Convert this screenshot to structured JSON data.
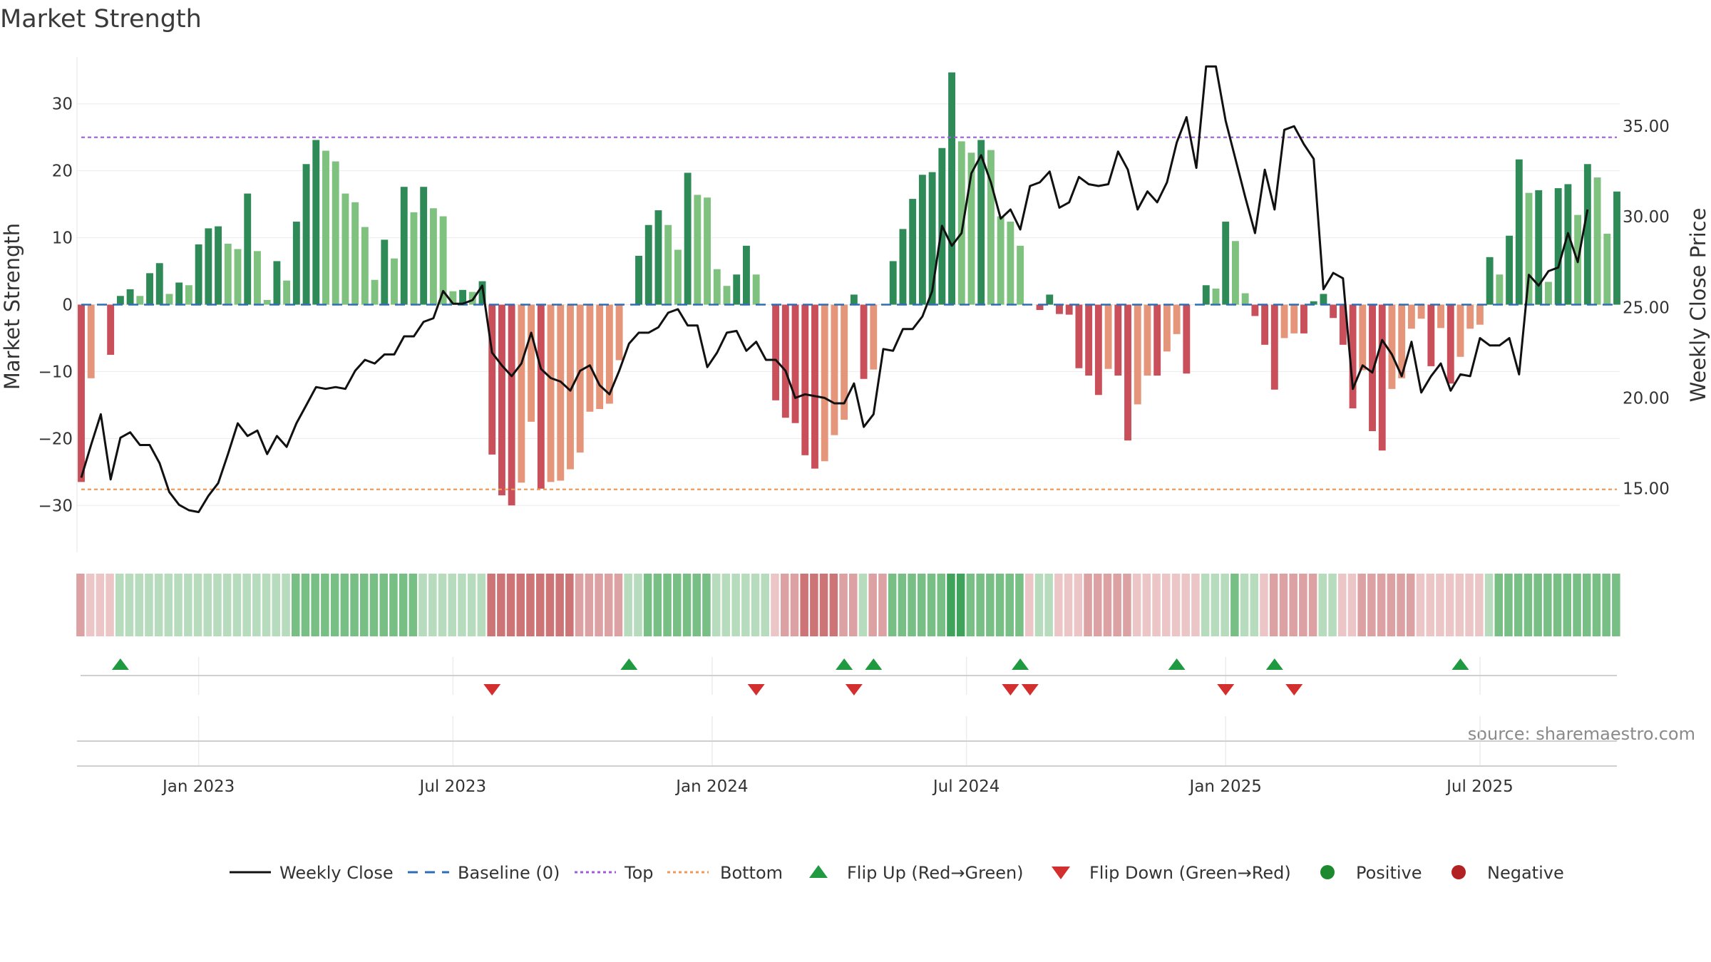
{
  "chart_data": {
    "type": "bar",
    "title": "Market Strength",
    "ylabel_left": "Market Strength",
    "ylabel_right": "Weekly Close Price",
    "source": "source: sharemaestro.com",
    "ylim_left": [
      -37,
      37
    ],
    "ylim_right": [
      11.48,
      38.82
    ],
    "yticks_left": [
      {
        "value": 30,
        "label": "30"
      },
      {
        "value": 20,
        "label": "20"
      },
      {
        "value": 10,
        "label": "10"
      },
      {
        "value": 0,
        "label": "0"
      },
      {
        "value": -10,
        "label": "−10"
      },
      {
        "value": -20,
        "label": "−20"
      },
      {
        "value": -30,
        "label": "−30"
      }
    ],
    "yticks_right": [
      {
        "value": 35,
        "label": "35.00"
      },
      {
        "value": 30,
        "label": "30.00"
      },
      {
        "value": 25,
        "label": "25.00"
      },
      {
        "value": 20,
        "label": "20.00"
      },
      {
        "value": 15,
        "label": "15.00"
      }
    ],
    "xticks": [
      {
        "week": 12,
        "label": "Jan 2023"
      },
      {
        "week": 38,
        "label": "Jul 2023"
      },
      {
        "week": 64.5,
        "label": "Jan 2024"
      },
      {
        "week": 90.5,
        "label": "Jul 2024"
      },
      {
        "week": 117,
        "label": "Jan 2025"
      },
      {
        "week": 143,
        "label": "Jul 2025"
      }
    ],
    "top_level": 25,
    "bottom_level": -27.6,
    "baseline": 0,
    "colors": {
      "pos_strong": "#2e8b57",
      "pos_light": "#7fc17f",
      "neg_strong": "#c9505a",
      "neg_light": "#e5967a",
      "close_line": "#111111",
      "top_line": "#9b5fd6",
      "bottom_line": "#ee9a5a",
      "baseline": "#2f6db5",
      "flip_up": "#1f9a40",
      "flip_down": "#d32f2f",
      "positive_dot": "#1e8a2f",
      "negative_dot": "#b22222"
    },
    "series": [
      {
        "name": "Market Strength",
        "values": [
          -26.5,
          -11,
          0,
          -7.5,
          1.3,
          2.3,
          1.3,
          4.7,
          6.2,
          1.6,
          3.3,
          2.9,
          9,
          11.4,
          11.7,
          9.1,
          8.3,
          16.6,
          8,
          0.7,
          6.5,
          3.6,
          12.4,
          21,
          24.6,
          23,
          21.4,
          16.6,
          15.3,
          11.6,
          3.7,
          9.7,
          6.9,
          17.6,
          13.8,
          17.6,
          14.4,
          13.2,
          2,
          2.2,
          1.9,
          3.5,
          -22.4,
          -28.5,
          -30,
          -26.6,
          -17.5,
          -27.5,
          -26.5,
          -26.3,
          -24.6,
          -22.1,
          -16,
          -15.6,
          -14.8,
          -8.3,
          0,
          7.3,
          11.9,
          14.1,
          11.9,
          8.2,
          19.7,
          16.4,
          16,
          5.3,
          2.8,
          4.5,
          8.8,
          4.5,
          0,
          -14.3,
          -16.9,
          -17.7,
          -22.5,
          -24.5,
          -23.4,
          -19.5,
          -17.2,
          1.5,
          -11.1,
          -9.7,
          0,
          6.5,
          11.3,
          15.8,
          19.4,
          19.8,
          23.4,
          34.7,
          24.4,
          22.7,
          24.6,
          23.1,
          13.2,
          12.4,
          8.8,
          0,
          -0.8,
          1.5,
          -1.4,
          -1.5,
          -9.5,
          -10.6,
          -13.5,
          -9.6,
          -10.6,
          -20.3,
          -14.9,
          -10.6,
          -10.6,
          -7,
          -4.4,
          -10.3,
          0,
          2.9,
          2.4,
          12.4,
          9.5,
          1.7,
          -1.7,
          -6,
          -12.7,
          -5,
          -4.3,
          -4.3,
          0.5,
          1.6,
          -2,
          -6,
          -15.5,
          -9.8,
          -18.9,
          -21.8,
          -12.6,
          -11,
          -3.6,
          -2.1,
          -9.2,
          -3.5,
          -11.8,
          -7.8,
          -3.6,
          -3,
          7.1,
          4.5,
          10.3,
          21.7,
          16.7,
          17.1,
          3.4,
          17.4,
          18,
          13.4,
          21,
          19,
          10.6,
          16.9
        ]
      },
      {
        "name": "Weekly Close",
        "values": [
          15.6,
          17.4,
          19.1,
          15.5,
          17.8,
          18.1,
          17.4,
          17.4,
          16.4,
          14.8,
          14.1,
          13.8,
          13.7,
          14.6,
          15.3,
          16.9,
          18.6,
          17.9,
          18.2,
          16.9,
          17.9,
          17.3,
          18.6,
          19.6,
          20.6,
          20.5,
          20.6,
          20.5,
          21.5,
          22.1,
          21.9,
          22.4,
          22.4,
          23.4,
          23.4,
          24.2,
          24.4,
          25.9,
          25.2,
          25.2,
          25.4,
          26.2,
          22.5,
          21.8,
          21.2,
          21.9,
          23.6,
          21.6,
          21.1,
          20.9,
          20.4,
          21.5,
          21.8,
          20.7,
          20.2,
          21.5,
          23,
          23.6,
          23.6,
          23.9,
          24.7,
          24.9,
          24,
          24,
          21.7,
          22.5,
          23.6,
          23.7,
          22.6,
          23.1,
          22.1,
          22.1,
          21.5,
          20,
          20.2,
          20.1,
          20,
          19.7,
          19.7,
          20.8,
          18.4,
          19.1,
          22.7,
          22.6,
          23.8,
          23.8,
          24.5,
          25.9,
          29.5,
          28.4,
          29.1,
          32.4,
          33.4,
          31.9,
          29.9,
          30.4,
          29.3,
          31.7,
          31.9,
          32.5,
          30.5,
          30.8,
          32.2,
          31.8,
          31.7,
          31.8,
          33.6,
          32.6,
          30.4,
          31.4,
          30.8,
          31.9,
          34.1,
          35.5,
          32.7,
          38.3,
          38.3,
          35.3,
          33.2,
          31.1,
          29.1,
          32.6,
          30.4,
          34.8,
          35,
          34,
          33.2,
          26,
          26.9,
          26.6,
          20.5,
          21.8,
          21.4,
          23.2,
          22.4,
          21.2,
          23.1,
          20.3,
          21.2,
          21.9,
          20.4,
          21.3,
          21.2,
          23.3,
          22.9,
          22.9,
          23.3,
          21.3,
          26.8,
          26.2,
          27,
          27.2,
          29.1,
          27.5,
          30.4
        ]
      }
    ],
    "heat_strip": [
      -2,
      -1,
      -1,
      -1,
      1,
      1,
      1,
      1,
      1,
      1,
      1,
      1,
      1,
      1,
      1,
      1,
      1,
      1,
      1,
      1,
      1,
      1,
      2,
      2,
      2,
      2,
      2,
      2,
      2,
      2,
      2,
      2,
      2,
      2,
      2,
      1,
      1,
      1,
      1,
      1,
      1,
      1,
      -3,
      -3,
      -3,
      -3,
      -3,
      -3,
      -3,
      -3,
      -3,
      -2,
      -2,
      -2,
      -2,
      -2,
      1,
      1,
      2,
      2,
      2,
      2,
      2,
      2,
      2,
      1,
      1,
      1,
      1,
      1,
      1,
      -1,
      -2,
      -2,
      -3,
      -3,
      -3,
      -3,
      -2,
      -2,
      1,
      -2,
      -2,
      2,
      2,
      2,
      2,
      2,
      2,
      3,
      3,
      2,
      2,
      2,
      2,
      2,
      2,
      -1,
      1,
      1,
      -1,
      -1,
      -1,
      -2,
      -2,
      -2,
      -2,
      -2,
      -1,
      -1,
      -1,
      -1,
      -1,
      -1,
      -1,
      1,
      1,
      1,
      2,
      1,
      1,
      -1,
      -2,
      -2,
      -2,
      -2,
      -2,
      1,
      1,
      -1,
      -1,
      -2,
      -2,
      -2,
      -2,
      -2,
      -2,
      -1,
      -1,
      -1,
      -1,
      -1,
      -1,
      -1,
      1,
      2,
      2,
      2,
      2,
      2,
      2,
      2,
      2,
      2,
      2,
      2,
      2,
      2
    ],
    "flip_up_weeks": [
      4,
      56,
      78,
      81,
      96,
      112,
      122,
      141
    ],
    "flip_down_weeks": [
      42,
      69,
      79,
      95,
      97,
      117,
      124
    ],
    "legend": [
      {
        "kind": "line",
        "label": "Weekly Close"
      },
      {
        "kind": "dash",
        "label": "Baseline (0)"
      },
      {
        "kind": "dotted-top",
        "label": "Top"
      },
      {
        "kind": "dotted-bottom",
        "label": "Bottom"
      },
      {
        "kind": "triangle-up",
        "label": "Flip Up (Red→Green)"
      },
      {
        "kind": "triangle-down",
        "label": "Flip Down (Green→Red)"
      },
      {
        "kind": "dot-pos",
        "label": "Positive"
      },
      {
        "kind": "dot-neg",
        "label": "Negative"
      }
    ]
  }
}
